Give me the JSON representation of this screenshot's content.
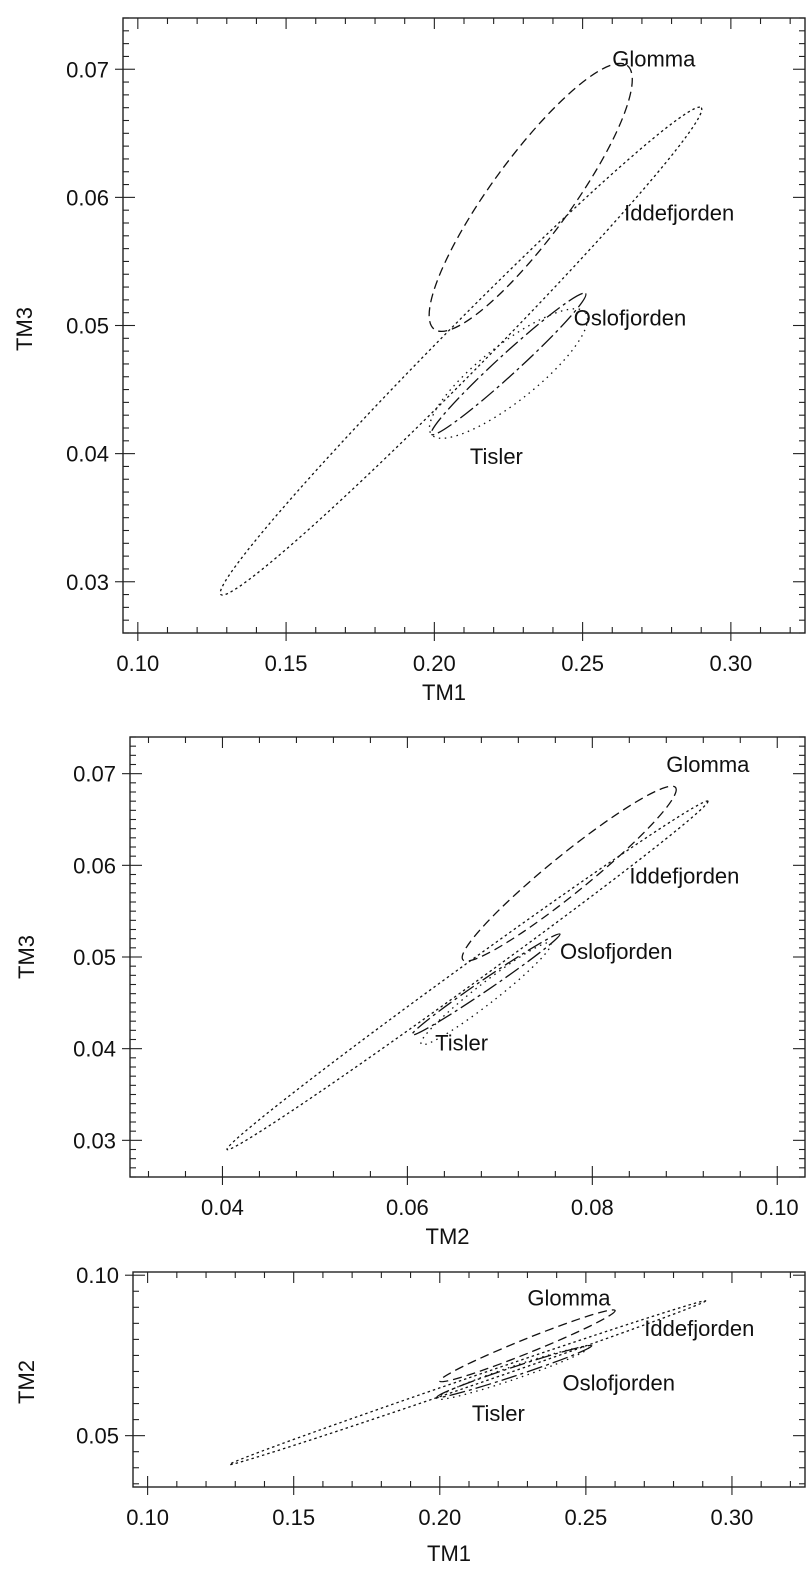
{
  "chart_data": [
    {
      "type": "scatter",
      "xlabel": "TM1",
      "ylabel": "TM3",
      "xlim": [
        0.095,
        0.325
      ],
      "ylim": [
        0.026,
        0.074
      ],
      "xticks": [
        "0.10",
        "0.15",
        "0.20",
        "0.25",
        "0.30"
      ],
      "yticks": [
        "0.03",
        "0.04",
        "0.05",
        "0.06",
        "0.07"
      ],
      "series": [
        {
          "name": "Glomma",
          "style": "dashed",
          "center": [
            0.2235,
            0.06
          ],
          "span": [
            [
              0.2,
              0.0497
            ],
            [
              0.265,
              0.0703
            ]
          ],
          "halfwidth": 0.0031,
          "label_at": [
            0.26,
            0.0702
          ]
        },
        {
          "name": "Iddefjorden",
          "style": "dotted",
          "center": [
            0.2095,
            0.048
          ],
          "span": [
            [
              0.128,
              0.029
            ],
            [
              0.29,
              0.067
            ]
          ],
          "halfwidth": 0.0018,
          "label_at": [
            0.264,
            0.0582
          ]
        },
        {
          "name": "Oslofjorden",
          "style": "longdash",
          "center": [
            0.225,
            0.047
          ],
          "span": [
            [
              0.199,
              0.0415
            ],
            [
              0.251,
              0.0525
            ]
          ],
          "halfwidth": 0.0008,
          "label_at": [
            0.247,
            0.05
          ]
        },
        {
          "name": "Tisler",
          "style": "sparse-dotted",
          "center": [
            0.225,
            0.0463
          ],
          "span": [
            [
              0.199,
              0.0415
            ],
            [
              0.251,
              0.051
            ]
          ],
          "halfwidth": 0.0022,
          "label_at": [
            0.212,
            0.0392
          ]
        }
      ]
    },
    {
      "type": "scatter",
      "xlabel": "TM2",
      "ylabel": "TM3",
      "xlim": [
        0.03,
        0.103
      ],
      "ylim": [
        0.026,
        0.074
      ],
      "xticks": [
        "0.04",
        "0.06",
        "0.08",
        "0.10"
      ],
      "yticks": [
        "0.03",
        "0.04",
        "0.05",
        "0.06",
        "0.07"
      ],
      "series": [
        {
          "name": "Glomma",
          "style": "dashed",
          "center": [
            0.0775,
            0.059
          ],
          "span": [
            [
              0.066,
              0.0497
            ],
            [
              0.089,
              0.0685
            ]
          ],
          "halfwidth": 0.0021,
          "label_at": [
            0.088,
            0.0702
          ]
        },
        {
          "name": "Iddefjorden",
          "style": "dotted",
          "center": [
            0.0665,
            0.048
          ],
          "span": [
            [
              0.0405,
              0.029
            ],
            [
              0.0925,
              0.067
            ]
          ],
          "halfwidth": 0.0011,
          "label_at": [
            0.084,
            0.058
          ]
        },
        {
          "name": "Oslofjorden",
          "style": "longdash",
          "center": [
            0.0685,
            0.047
          ],
          "span": [
            [
              0.0605,
              0.0415
            ],
            [
              0.0765,
              0.0525
            ]
          ],
          "halfwidth": 0.0006,
          "label_at": [
            0.0765,
            0.0498
          ]
        },
        {
          "name": "Tisler",
          "style": "sparse-dotted",
          "center": [
            0.0685,
            0.046
          ],
          "span": [
            [
              0.0615,
              0.0405
            ],
            [
              0.0755,
              0.0515
            ]
          ],
          "halfwidth": 0.0011,
          "label_at": [
            0.063,
            0.0398
          ]
        }
      ]
    },
    {
      "type": "scatter",
      "xlabel": "TM1",
      "ylabel": "TM2",
      "xlim": [
        0.095,
        0.325
      ],
      "ylim": [
        0.034,
        0.101
      ],
      "xticks": [
        "0.10",
        "0.15",
        "0.20",
        "0.25",
        "0.30"
      ],
      "yticks": [
        "0.05",
        "0.10"
      ],
      "series": [
        {
          "name": "Glomma",
          "style": "dashed",
          "center": [
            0.23,
            0.078
          ],
          "span": [
            [
              0.2,
              0.067
            ],
            [
              0.26,
              0.089
            ]
          ],
          "halfwidth": 0.0022,
          "label_at": [
            0.23,
            0.0905
          ]
        },
        {
          "name": "Iddefjorden",
          "style": "dotted",
          "center": [
            0.2095,
            0.0665
          ],
          "span": [
            [
              0.128,
              0.041
            ],
            [
              0.291,
              0.092
            ]
          ],
          "halfwidth": 0.0013,
          "label_at": [
            0.27,
            0.081
          ]
        },
        {
          "name": "Oslofjorden",
          "style": "longdash",
          "center": [
            0.2255,
            0.07
          ],
          "span": [
            [
              0.199,
              0.062
            ],
            [
              0.252,
              0.078
            ]
          ],
          "halfwidth": 0.0014,
          "label_at": [
            0.242,
            0.064
          ]
        },
        {
          "name": "Tisler",
          "style": "sparse-dotted",
          "center": [
            0.225,
            0.0695
          ],
          "span": [
            [
              0.199,
              0.0615
            ],
            [
              0.251,
              0.0775
            ]
          ],
          "halfwidth": 0.002,
          "label_at": [
            0.211,
            0.0545
          ]
        }
      ]
    }
  ]
}
